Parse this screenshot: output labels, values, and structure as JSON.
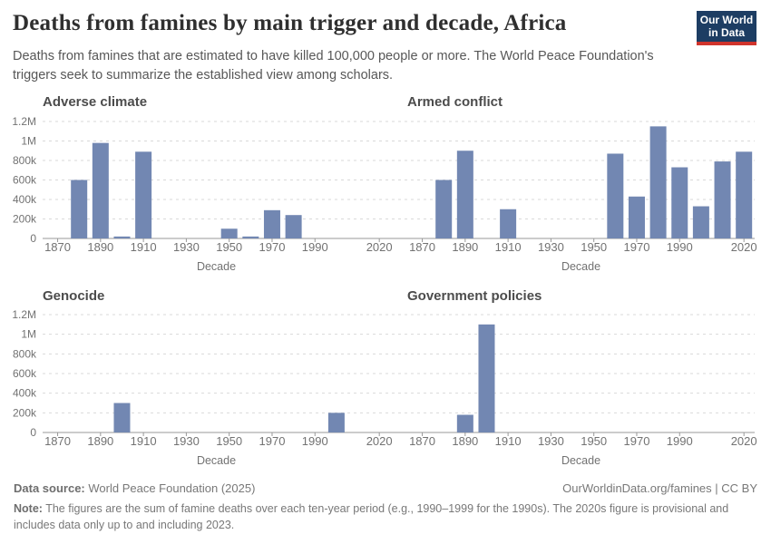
{
  "header": {
    "title": "Deaths from famines by main trigger and decade, Africa",
    "subtitle": "Deaths from famines that are estimated to have killed 100,000 people or more. The World Peace Foundation's triggers seek to summarize the established view among scholars.",
    "logo_line1": "Our World",
    "logo_line2": "in Data"
  },
  "chart_data": {
    "type": "bar",
    "xlabel": "Decade",
    "x_ticks": [
      1870,
      1890,
      1910,
      1930,
      1950,
      1970,
      1990,
      2020
    ],
    "x_domain": [
      1863,
      2025
    ],
    "ylim": [
      0,
      1200000
    ],
    "y_ticks": {
      "values": [
        0,
        200000,
        400000,
        600000,
        800000,
        1000000,
        1200000
      ],
      "labels": [
        "0",
        "200k",
        "400k",
        "600k",
        "800k",
        "1M",
        "1.2M"
      ]
    },
    "grid": true,
    "legend": "none",
    "panels": [
      {
        "title": "Adverse climate",
        "decades": [
          1880,
          1890,
          1900,
          1910,
          1950,
          1960,
          1970,
          1980
        ],
        "deaths": [
          600000,
          980000,
          20000,
          890000,
          100000,
          20000,
          290000,
          240000
        ]
      },
      {
        "title": "Armed conflict",
        "decades": [
          1880,
          1890,
          1910,
          1960,
          1970,
          1980,
          1990,
          2000,
          2010,
          2020
        ],
        "deaths": [
          600000,
          900000,
          300000,
          870000,
          430000,
          1150000,
          730000,
          330000,
          790000,
          890000
        ]
      },
      {
        "title": "Genocide",
        "decades": [
          1900,
          2000
        ],
        "deaths": [
          300000,
          200000
        ]
      },
      {
        "title": "Government policies",
        "decades": [
          1890,
          1900
        ],
        "deaths": [
          180000,
          1100000
        ]
      }
    ]
  },
  "footer": {
    "data_source_label": "Data source:",
    "data_source_value": "World Peace Foundation (2025)",
    "attribution": "OurWorldinData.org/famines | CC BY",
    "note_label": "Note:",
    "note_text": "The figures are the sum of famine deaths over each ten-year period (e.g., 1990–1999 for the 1990s). The 2020s figure is provisional and includes data only up to and including 2023."
  },
  "colors": {
    "bar": "#7287b2",
    "grid": "#d9d9d9",
    "axis": "#989898",
    "tick_text": "#727272",
    "panel_title": "#4c4c4c",
    "title_text": "#2f2f2f",
    "subtitle_text": "#575757",
    "footer_text": "#787878",
    "logo_bg": "#1d3d63",
    "logo_stripe": "#d0342c"
  }
}
